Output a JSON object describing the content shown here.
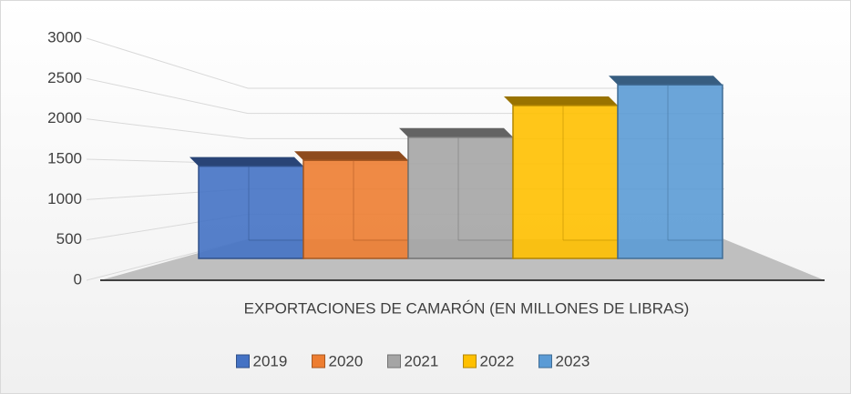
{
  "chart_data": {
    "type": "bar3d",
    "categories": [
      "EXPORTACIONES DE CAMARÓN (EN MILLONES DE LIBRAS)"
    ],
    "series": [
      {
        "name": "2019",
        "color": "#4472c4",
        "values": [
          1430
        ]
      },
      {
        "name": "2020",
        "color": "#ed7d31",
        "values": [
          1520
        ]
      },
      {
        "name": "2021",
        "color": "#a5a5a5",
        "values": [
          1880
        ]
      },
      {
        "name": "2022",
        "color": "#ffc000",
        "values": [
          2370
        ]
      },
      {
        "name": "2023",
        "color": "#5b9bd5",
        "values": [
          2690
        ]
      }
    ],
    "ylim": [
      0,
      3000
    ],
    "yticks": [
      0,
      500,
      1000,
      1500,
      2000,
      2500,
      3000
    ],
    "grid": true,
    "legend": "bottom"
  }
}
